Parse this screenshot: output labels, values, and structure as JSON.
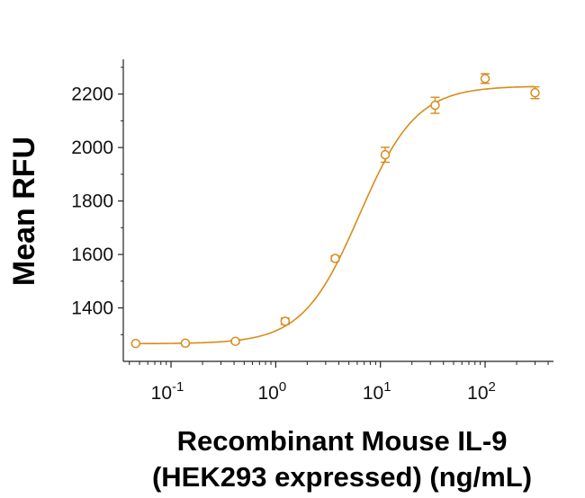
{
  "chart_data": {
    "type": "scatter",
    "title": "",
    "ylabel": "Mean RFU",
    "xlabel_lines": [
      "Recombinant Mouse IL-9",
      "(HEK293 expressed) (ng/mL)"
    ],
    "x_scale": "log10",
    "xlim": [
      0.035,
      450
    ],
    "ylim": [
      1200,
      2330
    ],
    "y_ticks": [
      1400,
      1600,
      1800,
      2000,
      2200
    ],
    "x_ticks": [
      {
        "value": 0.1,
        "base": "10",
        "exp": "-1"
      },
      {
        "value": 1,
        "base": "10",
        "exp": "0"
      },
      {
        "value": 10,
        "base": "10",
        "exp": "1"
      },
      {
        "value": 100,
        "base": "10",
        "exp": "2"
      }
    ],
    "grid": false,
    "color": "#D98B1B",
    "series": [
      {
        "points": [
          {
            "x": 0.046,
            "y": 1267,
            "err": 0
          },
          {
            "x": 0.137,
            "y": 1268,
            "err": 6
          },
          {
            "x": 0.412,
            "y": 1275,
            "err": 7
          },
          {
            "x": 1.23,
            "y": 1350,
            "err": 12
          },
          {
            "x": 3.7,
            "y": 1585,
            "err": 10
          },
          {
            "x": 11.1,
            "y": 1973,
            "err": 28
          },
          {
            "x": 33.3,
            "y": 2158,
            "err": 30
          },
          {
            "x": 100,
            "y": 2258,
            "err": 18
          },
          {
            "x": 300,
            "y": 2205,
            "err": 22
          }
        ],
        "fit": {
          "bottom": 1266,
          "top": 2230,
          "ec50": 6.3,
          "hill": 1.6
        }
      }
    ]
  }
}
